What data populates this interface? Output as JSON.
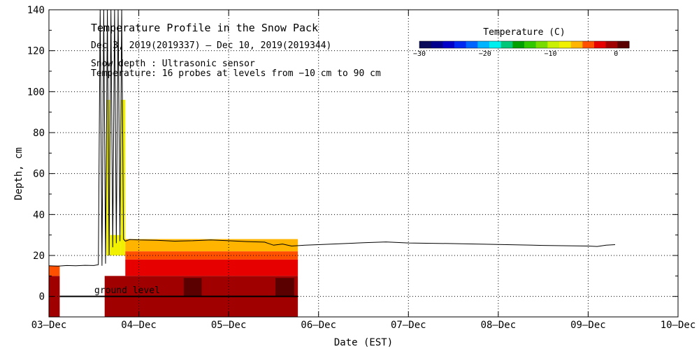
{
  "chart_data": {
    "type": "heatmap",
    "title": "Temperature Profile in the Snow Pack",
    "subtitle": "Dec 3, 2019(2019337) – Dec 10, 2019(2019344)",
    "annotations": [
      "Snow depth : Ultrasonic sensor",
      "Temperature: 16 probes at levels from −10 cm to 90 cm"
    ],
    "ground_label": "ground level",
    "xlabel": "Date (EST)",
    "ylabel": "Depth, cm",
    "x_ticks": [
      "03–Dec",
      "04–Dec",
      "05–Dec",
      "06–Dec",
      "07–Dec",
      "08–Dec",
      "09–Dec",
      "10–Dec"
    ],
    "y_ticks": [
      "0",
      "20",
      "40",
      "60",
      "80",
      "100",
      "120",
      "140"
    ],
    "xlim": [
      0,
      7
    ],
    "ylim": [
      -10,
      140
    ],
    "grid": true,
    "colorbar": {
      "title": "Temperature (C)",
      "range": [
        -30,
        2
      ],
      "ticks": [
        "−30",
        "−20",
        "−10",
        "0"
      ],
      "colors": [
        "#0a0a5a",
        "#00008c",
        "#0000c8",
        "#0028f0",
        "#0064ff",
        "#00b4ff",
        "#00f0f0",
        "#00c878",
        "#00a000",
        "#32c800",
        "#78dc00",
        "#c8f000",
        "#f0f000",
        "#ffb400",
        "#ff5000",
        "#e60000",
        "#a00000",
        "#5a0000"
      ]
    },
    "snow_depth": [
      [
        0.0,
        15.0
      ],
      [
        0.1,
        14.8
      ],
      [
        0.2,
        15.1
      ],
      [
        0.3,
        15.0
      ],
      [
        0.4,
        15.2
      ],
      [
        0.5,
        15.1
      ],
      [
        0.55,
        15.5
      ],
      [
        0.57,
        140
      ],
      [
        0.59,
        15
      ],
      [
        0.61,
        140
      ],
      [
        0.63,
        16
      ],
      [
        0.65,
        140
      ],
      [
        0.67,
        20
      ],
      [
        0.69,
        140
      ],
      [
        0.71,
        24
      ],
      [
        0.73,
        140
      ],
      [
        0.75,
        26
      ],
      [
        0.77,
        140
      ],
      [
        0.79,
        27
      ],
      [
        0.81,
        140
      ],
      [
        0.83,
        28
      ],
      [
        0.85,
        27
      ],
      [
        0.9,
        27.8
      ],
      [
        1.0,
        27.6
      ],
      [
        1.2,
        27.4
      ],
      [
        1.4,
        27.0
      ],
      [
        1.6,
        27.2
      ],
      [
        1.8,
        27.6
      ],
      [
        2.0,
        27.2
      ],
      [
        2.2,
        26.8
      ],
      [
        2.4,
        26.5
      ],
      [
        2.5,
        25.0
      ],
      [
        2.6,
        25.6
      ],
      [
        2.7,
        24.6
      ],
      [
        2.85,
        25.0
      ],
      [
        3.0,
        25.3
      ],
      [
        3.5,
        26.2
      ],
      [
        3.75,
        26.6
      ],
      [
        4.0,
        26.1
      ],
      [
        4.5,
        25.8
      ],
      [
        5.0,
        25.4
      ],
      [
        5.5,
        24.9
      ],
      [
        6.0,
        24.6
      ],
      [
        6.1,
        24.4
      ],
      [
        6.2,
        25.0
      ],
      [
        6.3,
        25.3
      ]
    ],
    "temperature_bands": [
      {
        "x": [
          0.0,
          0.12
        ],
        "y": [
          -10,
          10
        ],
        "temp": -1.0
      },
      {
        "x": [
          0.0,
          0.12
        ],
        "y": [
          10,
          15
        ],
        "temp": -5.0
      },
      {
        "x": [
          0.64,
          0.68
        ],
        "y": [
          20,
          96
        ],
        "temp": -8.0
      },
      {
        "x": [
          0.68,
          0.8
        ],
        "y": [
          20,
          30
        ],
        "temp": -8.0
      },
      {
        "x": [
          0.8,
          0.85
        ],
        "y": [
          20,
          96
        ],
        "temp": -8.0
      },
      {
        "x": [
          0.85,
          2.77
        ],
        "y": [
          22,
          28
        ],
        "temp": -6.0
      },
      {
        "x": [
          0.85,
          2.77
        ],
        "y": [
          18,
          22
        ],
        "temp": -4.0
      },
      {
        "x": [
          0.85,
          2.77
        ],
        "y": [
          10,
          18
        ],
        "temp": -2.5
      },
      {
        "x": [
          0.62,
          2.77
        ],
        "y": [
          0,
          10
        ],
        "temp": -1.0
      },
      {
        "x": [
          0.62,
          2.77
        ],
        "y": [
          -10,
          0
        ],
        "temp": 0.0
      },
      {
        "x": [
          1.5,
          1.7
        ],
        "y": [
          0,
          9
        ],
        "temp": 1.5
      },
      {
        "x": [
          2.52,
          2.73
        ],
        "y": [
          0,
          9
        ],
        "temp": 1.5
      }
    ]
  }
}
